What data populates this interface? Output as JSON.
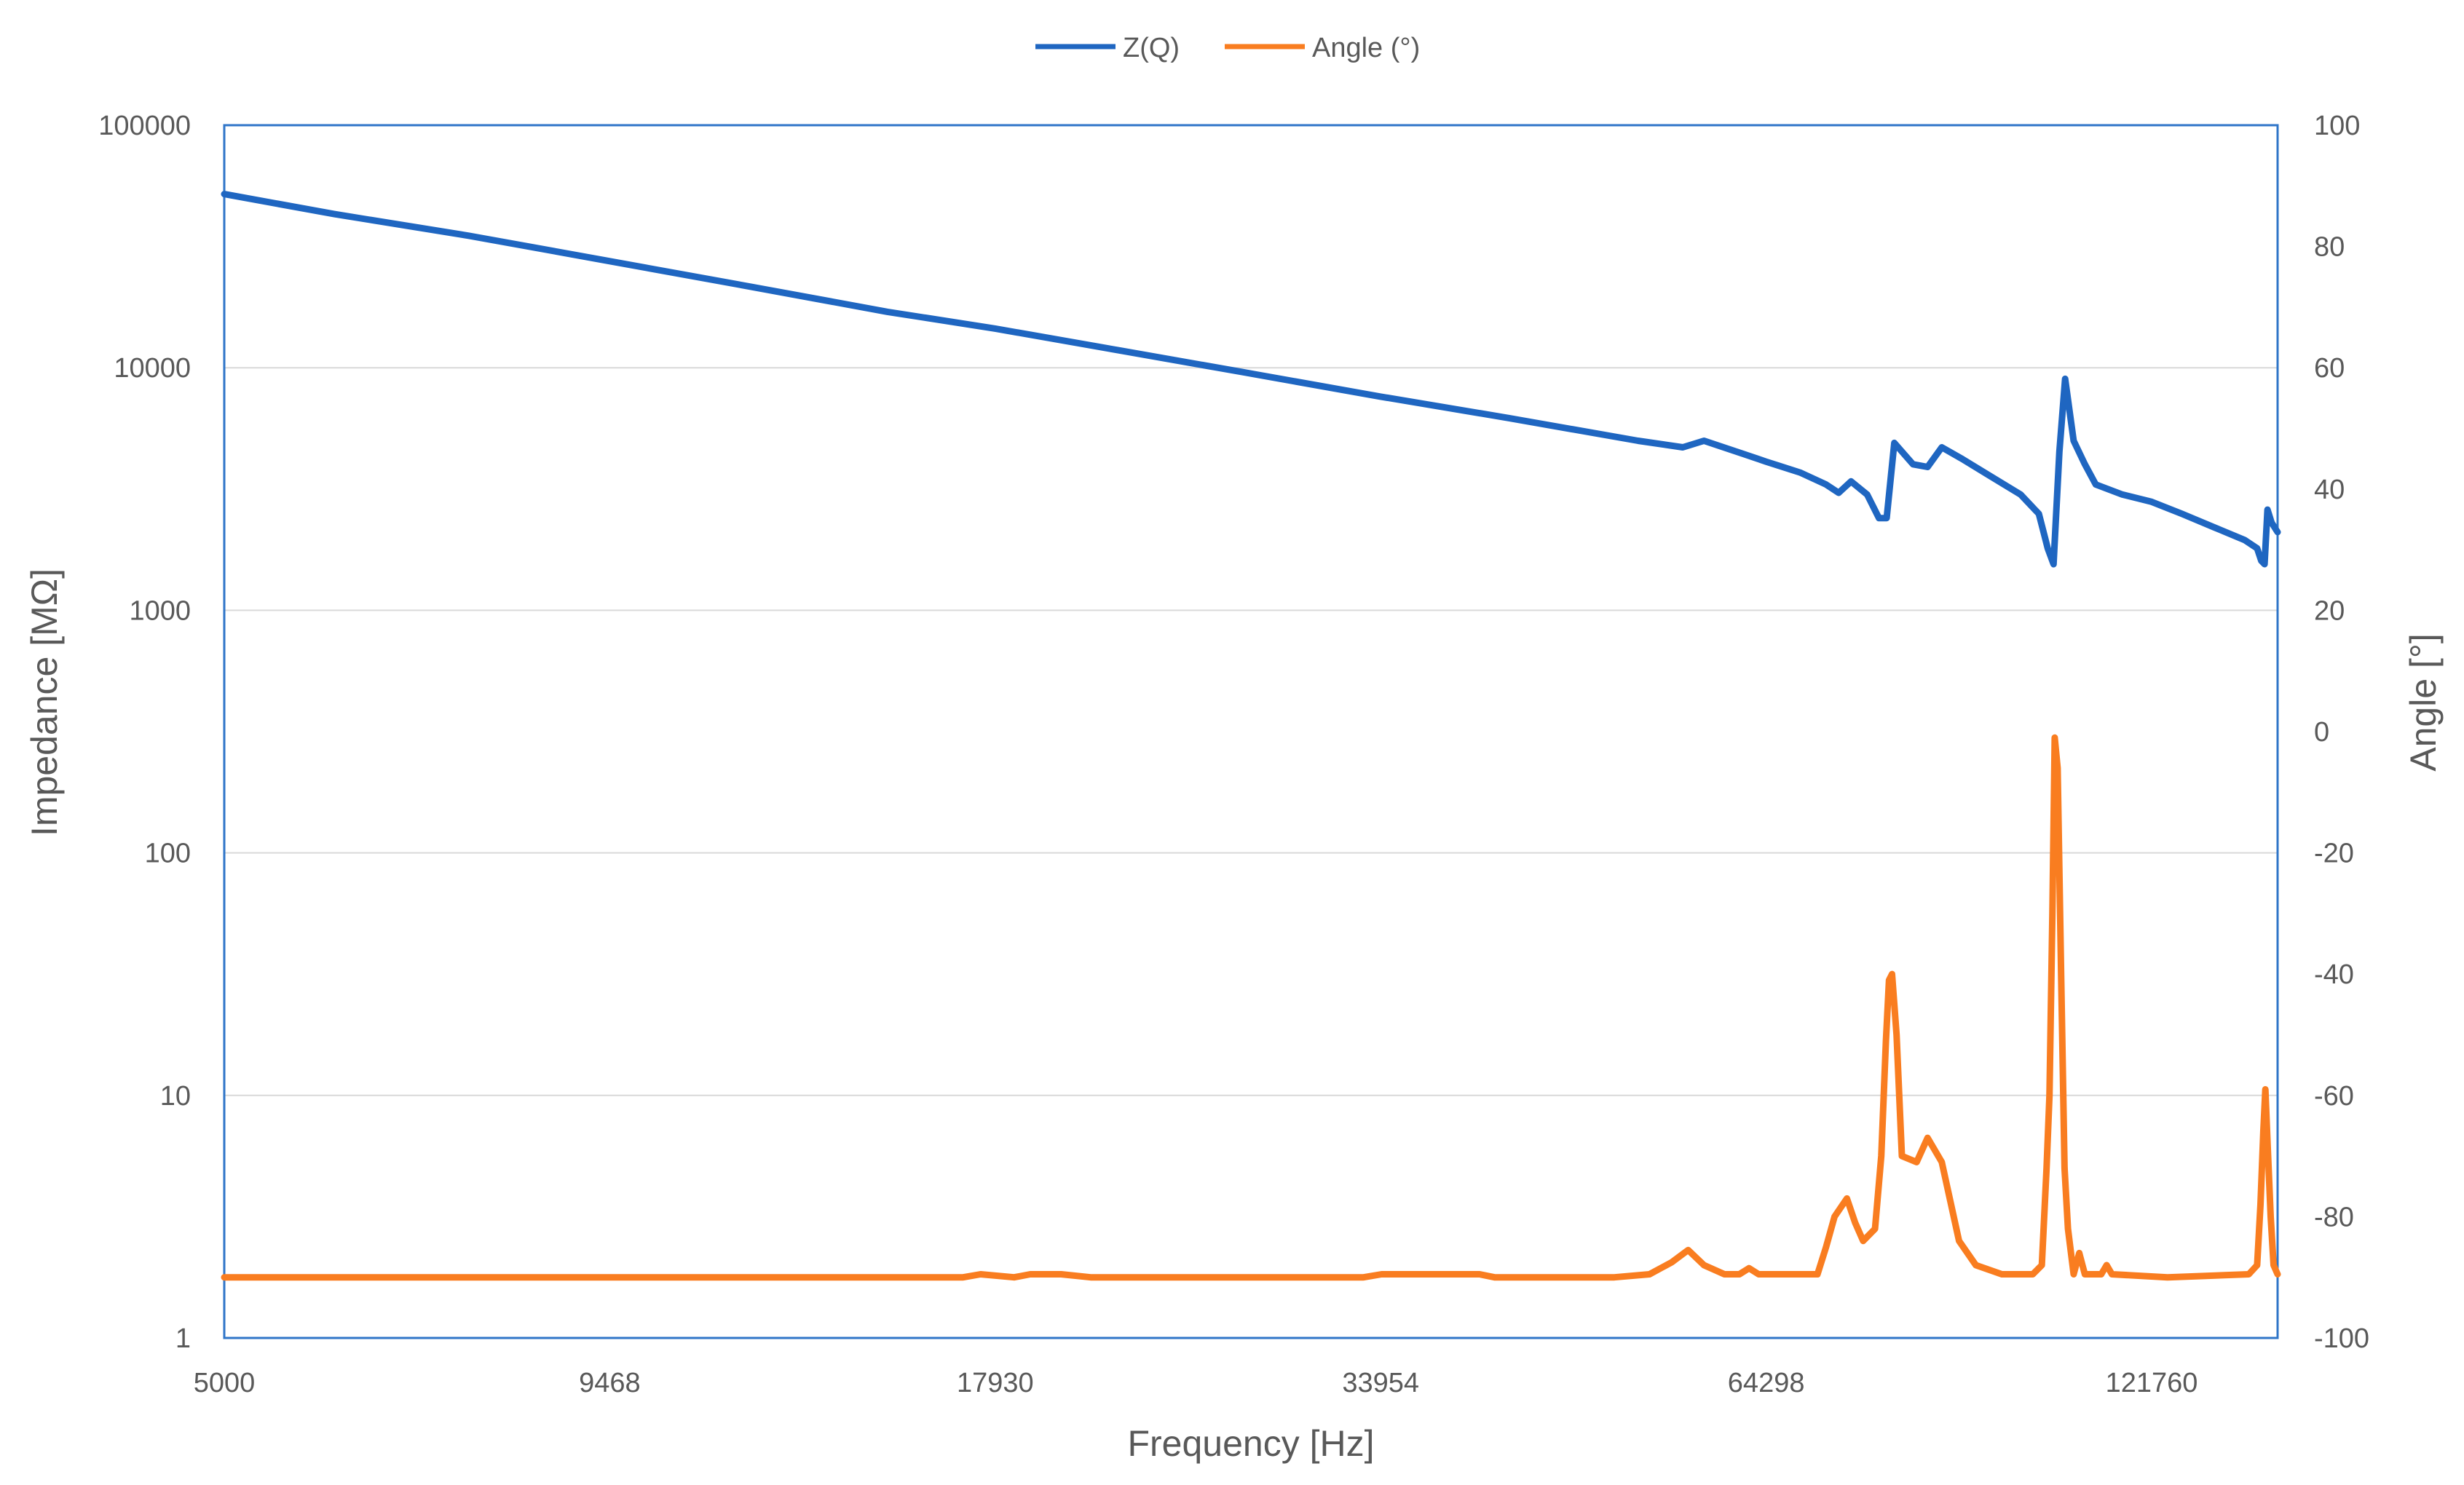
{
  "chart_data": {
    "type": "line",
    "xscale": "log",
    "xlabel": "Frequency [Hz]",
    "ylabel": "Impedance [MΩ]",
    "y2label": "Angle [°]",
    "xlim": [
      5000,
      150000
    ],
    "ylim": [
      1,
      100000
    ],
    "yscale": "log",
    "y2lim": [
      -100,
      100
    ],
    "xticks": [
      "5000",
      "9468",
      "17930",
      "33954",
      "64298",
      "121760"
    ],
    "yticks": [
      "1",
      "10",
      "100",
      "1000",
      "10000",
      "100000"
    ],
    "y2ticks": [
      "-100",
      "-80",
      "-60",
      "-40",
      "-20",
      "0",
      "20",
      "40",
      "60",
      "80",
      "100"
    ],
    "grid": true,
    "legend": "top-center",
    "series": [
      {
        "name": "Z(Q)",
        "axis": "left",
        "color": "#1F66C1",
        "points": [
          [
            5000,
            52000
          ],
          [
            6000,
            43000
          ],
          [
            7500,
            35000
          ],
          [
            9468,
            27500
          ],
          [
            12000,
            21500
          ],
          [
            15000,
            17000
          ],
          [
            17930,
            14500
          ],
          [
            22000,
            11800
          ],
          [
            27000,
            9600
          ],
          [
            33954,
            7600
          ],
          [
            42000,
            6200
          ],
          [
            52000,
            5000
          ],
          [
            56000,
            4700
          ],
          [
            58000,
            5000
          ],
          [
            62000,
            4400
          ],
          [
            64298,
            4100
          ],
          [
            68000,
            3700
          ],
          [
            71000,
            3300
          ],
          [
            72500,
            3050
          ],
          [
            74000,
            3400
          ],
          [
            76000,
            3000
          ],
          [
            77500,
            2400
          ],
          [
            78500,
            2400
          ],
          [
            79500,
            4900
          ],
          [
            82000,
            4000
          ],
          [
            84000,
            3900
          ],
          [
            86000,
            4700
          ],
          [
            89000,
            4200
          ],
          [
            93000,
            3600
          ],
          [
            98000,
            3000
          ],
          [
            101000,
            2500
          ],
          [
            102500,
            1800
          ],
          [
            103500,
            1550
          ],
          [
            104500,
            4500
          ],
          [
            105500,
            9000
          ],
          [
            107000,
            5000
          ],
          [
            109000,
            4000
          ],
          [
            111000,
            3300
          ],
          [
            116000,
            3000
          ],
          [
            121760,
            2800
          ],
          [
            128000,
            2500
          ],
          [
            135000,
            2200
          ],
          [
            142000,
            1950
          ],
          [
            145000,
            1800
          ],
          [
            146000,
            1600
          ],
          [
            146800,
            1550
          ],
          [
            147500,
            2600
          ],
          [
            148500,
            2300
          ],
          [
            150000,
            2100
          ]
        ]
      },
      {
        "name": "Angle (°)",
        "axis": "right",
        "color": "#F97D20",
        "points": [
          [
            5000,
            -90
          ],
          [
            17000,
            -90
          ],
          [
            17500,
            -89.5
          ],
          [
            18500,
            -90
          ],
          [
            19000,
            -89.5
          ],
          [
            20000,
            -89.5
          ],
          [
            21000,
            -90
          ],
          [
            33000,
            -90
          ],
          [
            34000,
            -89.5
          ],
          [
            40000,
            -89.5
          ],
          [
            41000,
            -90
          ],
          [
            50000,
            -90
          ],
          [
            53000,
            -89.5
          ],
          [
            55000,
            -87.5
          ],
          [
            56500,
            -85.5
          ],
          [
            58000,
            -88
          ],
          [
            60000,
            -89.5
          ],
          [
            61500,
            -89.5
          ],
          [
            62500,
            -88.5
          ],
          [
            63500,
            -89.5
          ],
          [
            70000,
            -89.5
          ],
          [
            71000,
            -85
          ],
          [
            72000,
            -80
          ],
          [
            73500,
            -77
          ],
          [
            74500,
            -81
          ],
          [
            75500,
            -84
          ],
          [
            77000,
            -82
          ],
          [
            77800,
            -70
          ],
          [
            78400,
            -51
          ],
          [
            78800,
            -41
          ],
          [
            79200,
            -40
          ],
          [
            79800,
            -50
          ],
          [
            80500,
            -70
          ],
          [
            82500,
            -71
          ],
          [
            84000,
            -67
          ],
          [
            86000,
            -71
          ],
          [
            88500,
            -84
          ],
          [
            91000,
            -88
          ],
          [
            95000,
            -89.5
          ],
          [
            100000,
            -89.5
          ],
          [
            101500,
            -88
          ],
          [
            102300,
            -72
          ],
          [
            102800,
            -60
          ],
          [
            103300,
            -30
          ],
          [
            103700,
            -1
          ],
          [
            104200,
            -6
          ],
          [
            104800,
            -40
          ],
          [
            105400,
            -72
          ],
          [
            106000,
            -82
          ],
          [
            107000,
            -89.5
          ],
          [
            108000,
            -86
          ],
          [
            109000,
            -89.5
          ],
          [
            112000,
            -89.5
          ],
          [
            113000,
            -88
          ],
          [
            114000,
            -89.5
          ],
          [
            125000,
            -90
          ],
          [
            143000,
            -89.5
          ],
          [
            145000,
            -88
          ],
          [
            145800,
            -78
          ],
          [
            146500,
            -66
          ],
          [
            147000,
            -59
          ],
          [
            147600,
            -69
          ],
          [
            148300,
            -80
          ],
          [
            149000,
            -88
          ],
          [
            150000,
            -89.5
          ]
        ]
      }
    ]
  }
}
